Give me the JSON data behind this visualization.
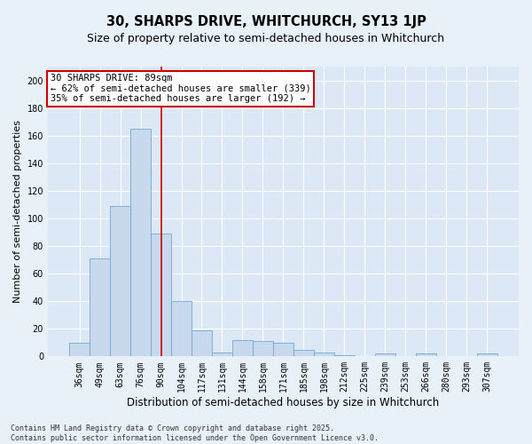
{
  "title": "30, SHARPS DRIVE, WHITCHURCH, SY13 1JP",
  "subtitle": "Size of property relative to semi-detached houses in Whitchurch",
  "xlabel": "Distribution of semi-detached houses by size in Whitchurch",
  "ylabel": "Number of semi-detached properties",
  "categories": [
    "36sqm",
    "49sqm",
    "63sqm",
    "76sqm",
    "90sqm",
    "104sqm",
    "117sqm",
    "131sqm",
    "144sqm",
    "158sqm",
    "171sqm",
    "185sqm",
    "198sqm",
    "212sqm",
    "225sqm",
    "239sqm",
    "253sqm",
    "266sqm",
    "280sqm",
    "293sqm",
    "307sqm"
  ],
  "values": [
    10,
    71,
    109,
    165,
    89,
    40,
    19,
    3,
    12,
    11,
    10,
    5,
    3,
    1,
    0,
    2,
    0,
    2,
    0,
    0,
    2
  ],
  "bar_color": "#c8d9ee",
  "bar_edge_color": "#6fa8d4",
  "vline_x": 4,
  "vline_color": "#cc0000",
  "annotation_box_text": "30 SHARPS DRIVE: 89sqm\n← 62% of semi-detached houses are smaller (339)\n35% of semi-detached houses are larger (192) →",
  "annotation_box_color": "#cc0000",
  "annotation_text_fontsize": 7.5,
  "ylim": [
    0,
    210
  ],
  "yticks": [
    0,
    20,
    40,
    60,
    80,
    100,
    120,
    140,
    160,
    180,
    200
  ],
  "background_color": "#dce8f5",
  "fig_background_color": "#e8f0f8",
  "grid_color": "#ffffff",
  "footer_text": "Contains HM Land Registry data © Crown copyright and database right 2025.\nContains public sector information licensed under the Open Government Licence v3.0.",
  "title_fontsize": 10.5,
  "subtitle_fontsize": 9,
  "xlabel_fontsize": 8.5,
  "ylabel_fontsize": 8,
  "tick_fontsize": 7,
  "footer_fontsize": 6
}
